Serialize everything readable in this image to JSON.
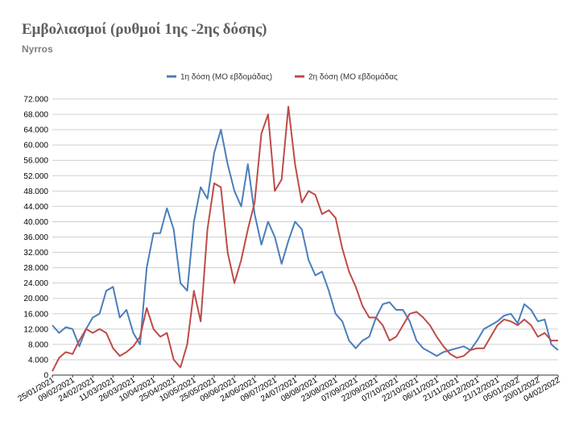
{
  "header": {
    "title": "Εμβολιασμοί (ρυθμοί 1ης -2ης δόσης)",
    "subtitle": "Nyrros"
  },
  "chart_data": {
    "type": "line",
    "title": "Εμβολιασμοί (ρυθμοί 1ης -2ης δόσης)",
    "subtitle": "Nyrros",
    "legend_position": "top",
    "grid": true,
    "ylim": [
      0,
      72000
    ],
    "y_ticks": [
      "0",
      "4.000",
      "8.000",
      "12.000",
      "16.000",
      "20.000",
      "24.000",
      "28.000",
      "32.000",
      "36.000",
      "40.000",
      "44.000",
      "48.000",
      "52.000",
      "56.000",
      "60.000",
      "64.000",
      "68.000",
      "72.000"
    ],
    "x_ticks": [
      "25/01/2021",
      "09/02/2021",
      "24/02/2021",
      "11/03/2021",
      "26/03/2021",
      "10/04/2021",
      "25/04/2021",
      "10/05/2021",
      "25/05/2021",
      "09/06/2021",
      "24/06/2021",
      "09/07/2021",
      "24/07/2021",
      "08/08/2021",
      "23/08/2021",
      "07/09/2021",
      "22/09/2021",
      "07/10/2021",
      "22/10/2021",
      "06/11/2021",
      "21/11/2021",
      "06/12/2021",
      "21/12/2021",
      "05/01/2022",
      "20/01/2022",
      "04/02/2022"
    ],
    "x": [
      "25/01/2021",
      "30/01/2021",
      "04/02/2021",
      "09/02/2021",
      "14/02/2021",
      "19/02/2021",
      "24/02/2021",
      "01/03/2021",
      "06/03/2021",
      "11/03/2021",
      "16/03/2021",
      "21/03/2021",
      "26/03/2021",
      "31/03/2021",
      "05/04/2021",
      "10/04/2021",
      "15/04/2021",
      "20/04/2021",
      "25/04/2021",
      "30/04/2021",
      "05/05/2021",
      "10/05/2021",
      "15/05/2021",
      "20/05/2021",
      "25/05/2021",
      "30/05/2021",
      "04/06/2021",
      "09/06/2021",
      "14/06/2021",
      "19/06/2021",
      "24/06/2021",
      "29/06/2021",
      "04/07/2021",
      "09/07/2021",
      "14/07/2021",
      "19/07/2021",
      "24/07/2021",
      "29/07/2021",
      "03/08/2021",
      "08/08/2021",
      "13/08/2021",
      "18/08/2021",
      "23/08/2021",
      "28/08/2021",
      "02/09/2021",
      "07/09/2021",
      "12/09/2021",
      "17/09/2021",
      "22/09/2021",
      "27/09/2021",
      "02/10/2021",
      "07/10/2021",
      "12/10/2021",
      "17/10/2021",
      "22/10/2021",
      "27/10/2021",
      "01/11/2021",
      "06/11/2021",
      "11/11/2021",
      "16/11/2021",
      "21/11/2021",
      "26/11/2021",
      "01/12/2021",
      "06/12/2021",
      "11/12/2021",
      "16/12/2021",
      "21/12/2021",
      "26/12/2021",
      "31/12/2021",
      "05/01/2022",
      "10/01/2022",
      "15/01/2022",
      "20/01/2022",
      "25/01/2022",
      "30/01/2022",
      "04/02/2022"
    ],
    "series": [
      {
        "name": "1η δόση (ΜΟ εβδομάδας)",
        "color": "#4a7ebb",
        "values": [
          13000,
          11000,
          12500,
          12000,
          7500,
          12000,
          15000,
          16000,
          22000,
          23000,
          15000,
          17000,
          11000,
          8000,
          28000,
          37000,
          37000,
          43500,
          38000,
          24000,
          22000,
          40000,
          49000,
          46000,
          58000,
          64000,
          55000,
          48000,
          44000,
          55000,
          42000,
          34000,
          40000,
          36000,
          29000,
          35000,
          40000,
          38000,
          30000,
          26000,
          27000,
          22000,
          16000,
          14000,
          9000,
          7000,
          9000,
          10000,
          15000,
          18500,
          19000,
          17000,
          17000,
          14000,
          9000,
          7000,
          6000,
          5000,
          6000,
          6500,
          7000,
          7500,
          6500,
          9000,
          12000,
          13000,
          14000,
          15500,
          16000,
          13500,
          18500,
          17000,
          14000,
          14500,
          8000,
          6500
        ]
      },
      {
        "name": "2η δόση (ΜΟ εβδομάδας",
        "color": "#be4b48",
        "values": [
          1000,
          4500,
          6000,
          5500,
          9000,
          12000,
          11000,
          12000,
          11000,
          7000,
          5000,
          6000,
          7500,
          10000,
          17500,
          12000,
          10000,
          11000,
          4000,
          2000,
          8000,
          22000,
          14000,
          38000,
          50000,
          49000,
          32000,
          24000,
          30000,
          38000,
          45000,
          63000,
          68000,
          48000,
          51000,
          70000,
          55000,
          45000,
          48000,
          47000,
          42000,
          43000,
          41000,
          33000,
          27000,
          23000,
          18000,
          15000,
          15000,
          13000,
          9000,
          10000,
          13000,
          16000,
          16500,
          15000,
          13000,
          10000,
          7500,
          5500,
          4500,
          5000,
          6500,
          7000,
          7000,
          10000,
          13000,
          14500,
          14000,
          13000,
          14500,
          13000,
          10000,
          11000,
          9000,
          9000
        ]
      }
    ]
  }
}
